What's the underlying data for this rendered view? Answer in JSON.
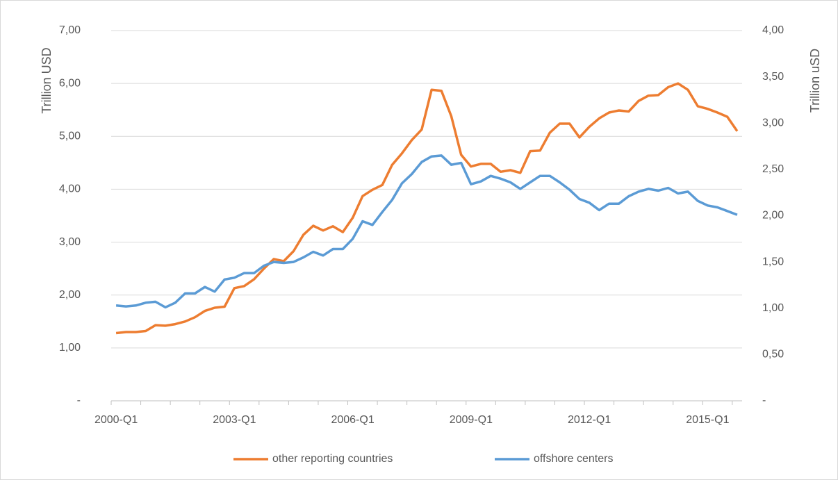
{
  "chart_data": {
    "type": "line",
    "categories": [
      "2000-Q1",
      null,
      null,
      null,
      null,
      null,
      null,
      null,
      null,
      null,
      null,
      null,
      "2003-Q1",
      null,
      null,
      null,
      null,
      null,
      null,
      null,
      null,
      null,
      null,
      null,
      "2006-Q1",
      null,
      null,
      null,
      null,
      null,
      null,
      null,
      null,
      null,
      null,
      null,
      "2009-Q1",
      null,
      null,
      null,
      null,
      null,
      null,
      null,
      null,
      null,
      null,
      null,
      "2012-Q1",
      null,
      null,
      null,
      null,
      null,
      null,
      null,
      null,
      null,
      null,
      null,
      "2015-Q1",
      null,
      null,
      null
    ],
    "y_label": "Trillion USD",
    "y2_label": "Trillion uSD",
    "ylim": [
      0,
      7
    ],
    "yticks": [
      {
        "value": 0,
        "label": "-"
      },
      {
        "value": 1,
        "label": "1,00"
      },
      {
        "value": 2,
        "label": "2,00"
      },
      {
        "value": 3,
        "label": "3,00"
      },
      {
        "value": 4,
        "label": "4,00"
      },
      {
        "value": 5,
        "label": "5,00"
      },
      {
        "value": 6,
        "label": "6,00"
      },
      {
        "value": 7,
        "label": "7,00"
      }
    ],
    "y2lim": [
      0,
      4
    ],
    "y2ticks": [
      {
        "value": 0,
        "label": "-"
      },
      {
        "value": 0.5,
        "label": "0,50"
      },
      {
        "value": 1,
        "label": "1,00"
      },
      {
        "value": 1.5,
        "label": "1,50"
      },
      {
        "value": 2,
        "label": "2,00"
      },
      {
        "value": 2.5,
        "label": "2,50"
      },
      {
        "value": 3,
        "label": "3,00"
      },
      {
        "value": 3.5,
        "label": "3,50"
      },
      {
        "value": 4,
        "label": "4,00"
      }
    ],
    "grid": true,
    "legend": "bottom",
    "series": [
      {
        "name": "other reporting countries",
        "color": "#ed7d31",
        "values": [
          1.28,
          1.3,
          1.3,
          1.32,
          1.43,
          1.42,
          1.45,
          1.5,
          1.58,
          1.7,
          1.76,
          1.78,
          2.13,
          2.17,
          2.3,
          2.5,
          2.68,
          2.64,
          2.83,
          3.14,
          3.31,
          3.22,
          3.3,
          3.19,
          3.46,
          3.87,
          3.99,
          4.08,
          4.46,
          4.68,
          4.93,
          5.13,
          5.88,
          5.86,
          5.38,
          4.65,
          4.43,
          4.48,
          4.48,
          4.33,
          4.36,
          4.31,
          4.72,
          4.73,
          5.07,
          5.24,
          5.24,
          4.98,
          5.18,
          5.34,
          5.45,
          5.49,
          5.47,
          5.67,
          5.77,
          5.78,
          5.93,
          6.0,
          5.88,
          5.57,
          5.52,
          5.45,
          5.37,
          5.1
        ]
      },
      {
        "name": "offshore centers",
        "color": "#5b9bd5",
        "axis": "y2",
        "values": [
          1.03,
          1.02,
          1.03,
          1.06,
          1.07,
          1.01,
          1.06,
          1.16,
          1.16,
          1.23,
          1.18,
          1.31,
          1.33,
          1.38,
          1.38,
          1.46,
          1.5,
          1.49,
          1.5,
          1.55,
          1.61,
          1.57,
          1.64,
          1.64,
          1.75,
          1.94,
          1.9,
          2.04,
          2.17,
          2.35,
          2.45,
          2.58,
          2.64,
          2.65,
          2.55,
          2.57,
          2.34,
          2.37,
          2.43,
          2.4,
          2.36,
          2.29,
          2.36,
          2.43,
          2.43,
          2.36,
          2.28,
          2.18,
          2.14,
          2.06,
          2.13,
          2.13,
          2.21,
          2.26,
          2.29,
          2.27,
          2.3,
          2.24,
          2.26,
          2.16,
          2.11,
          2.09,
          2.05,
          2.01
        ]
      }
    ]
  }
}
